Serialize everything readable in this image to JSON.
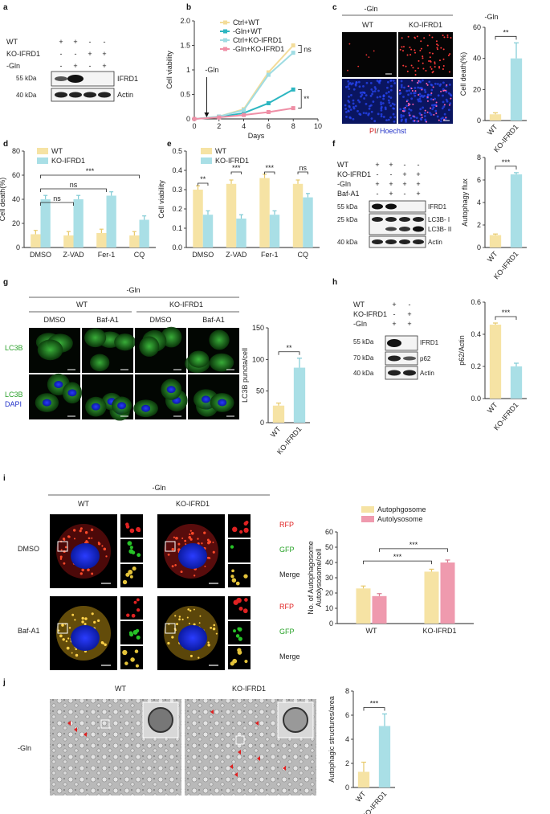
{
  "panels": {
    "a": {
      "letter": "a",
      "rows": [
        {
          "label": "WT",
          "marks": [
            "+",
            "+",
            "-",
            "-"
          ]
        },
        {
          "label": "KO-IFRD1",
          "marks": [
            "-",
            "-",
            "+",
            "+"
          ]
        },
        {
          "label": "-Gln",
          "marks": [
            "-",
            "+",
            "-",
            "+"
          ]
        }
      ],
      "kda": [
        "55 kDa",
        "40 kDa"
      ],
      "bands": [
        "IFRD1",
        "Actin"
      ]
    },
    "b": {
      "letter": "b",
      "annot_gln": "-Gln",
      "annot_ns": "ns",
      "annot_sig": "**",
      "colors": [
        "#f3dc9a",
        "#2cb6c1",
        "#9fdce3",
        "#ef8fa6"
      ]
    },
    "c": {
      "letter": "c",
      "title": "-Gln",
      "col_labels": [
        "WT",
        "KO-IFRD1"
      ],
      "stain_pi": "PI",
      "stain_sep": "/",
      "stain_hoechst": "Hoechst",
      "bar_title": "-Gln",
      "sig": "**"
    },
    "d": {
      "letter": "d",
      "sig": [
        "***",
        "ns",
        "ns"
      ]
    },
    "e": {
      "letter": "e",
      "sig": [
        "**",
        "***",
        "***",
        "ns"
      ]
    },
    "f": {
      "letter": "f",
      "rows": [
        {
          "label": "WT",
          "marks": [
            "+",
            "+",
            "-",
            "-"
          ]
        },
        {
          "label": "KO-IFRD1",
          "marks": [
            "-",
            "-",
            "+",
            "+"
          ]
        },
        {
          "label": "-Gln",
          "marks": [
            "+",
            "+",
            "+",
            "+"
          ]
        },
        {
          "label": "Baf-A1",
          "marks": [
            "-",
            "+",
            "-",
            "+"
          ]
        }
      ],
      "kda": [
        "55 kDa",
        "25 kDa",
        "40 kDa"
      ],
      "bands": [
        "IFRD1",
        "LC3B- I",
        "LC3B- II",
        "Actin"
      ],
      "sig": "***"
    },
    "g": {
      "letter": "g",
      "title": "-Gln",
      "groups": [
        "WT",
        "KO-IFRD1"
      ],
      "conds": [
        "DMSO",
        "Baf-A1",
        "DMSO",
        "Baf-A1"
      ],
      "row1": "LC3B",
      "row2a": "LC3B",
      "row2b": "DAPI",
      "sig": "**"
    },
    "h": {
      "letter": "h",
      "rows": [
        {
          "label": "WT",
          "marks": [
            "+",
            "-"
          ]
        },
        {
          "label": "KO-IFRD1",
          "marks": [
            "-",
            "+"
          ]
        },
        {
          "label": "-Gln",
          "marks": [
            "+",
            "+"
          ]
        }
      ],
      "kda": [
        "55 kDa",
        "70 kDa",
        "40 kDa"
      ],
      "bands": [
        "IFRD1",
        "p62",
        "Actin"
      ],
      "sig": "***"
    },
    "i": {
      "letter": "i",
      "title": "-Gln",
      "groups": [
        "WT",
        "KO-IFRD1"
      ],
      "rows": [
        "DMSO",
        "Baf-A1"
      ],
      "channels": [
        "RFP",
        "GFP",
        "Merge"
      ],
      "sig": [
        "***",
        "***"
      ]
    },
    "j": {
      "letter": "j",
      "groups": [
        "WT",
        "KO-IFRD1"
      ],
      "row": "-Gln",
      "sig": "***"
    }
  },
  "chart_data": [
    {
      "panel": "b",
      "type": "line",
      "x": [
        0,
        2,
        4,
        6,
        8
      ],
      "xlabel": "Days",
      "ylabel": "Cell viability",
      "xlim": [
        0,
        10
      ],
      "ylim": [
        0,
        2.0
      ],
      "xticks": [
        "0",
        "2",
        "4",
        "6",
        "8",
        "10"
      ],
      "yticks": [
        "0",
        "0.5",
        "1",
        "1.5",
        "2.0"
      ],
      "series": [
        {
          "name": "Ctrl+WT",
          "values": [
            0,
            0.05,
            0.2,
            0.95,
            1.5
          ]
        },
        {
          "name": "-Gln+WT",
          "values": [
            0,
            0.04,
            0.12,
            0.32,
            0.6
          ]
        },
        {
          "name": "Ctrl+KO-IFRD1",
          "values": [
            0,
            0.05,
            0.18,
            0.9,
            1.35
          ]
        },
        {
          "name": "-Gln+KO-IFRD1",
          "values": [
            0,
            0.03,
            0.08,
            0.14,
            0.22
          ]
        }
      ]
    },
    {
      "panel": "c",
      "type": "bar",
      "categories": [
        "WT",
        "KO-IFRD1"
      ],
      "values": [
        4,
        40
      ],
      "errors": [
        1,
        10
      ],
      "ylabel": "Cell death(%)",
      "ylim": [
        0,
        60
      ],
      "yticks": [
        "0",
        "20",
        "40",
        "60"
      ]
    },
    {
      "panel": "d",
      "type": "bar",
      "categories": [
        "DMSO",
        "Z-VAD",
        "Fer-1",
        "CQ"
      ],
      "series": [
        {
          "name": "WT",
          "values": [
            11,
            10,
            12,
            10
          ]
        },
        {
          "name": "KO-IFRD1",
          "values": [
            40,
            40,
            43,
            23
          ]
        }
      ],
      "ylabel": "Cell death(%)",
      "ylim": [
        0,
        80
      ],
      "yticks": [
        "0",
        "20",
        "40",
        "60",
        "80"
      ]
    },
    {
      "panel": "e",
      "type": "bar",
      "categories": [
        "DMSO",
        "Z-VAD",
        "Fer-1",
        "CQ"
      ],
      "series": [
        {
          "name": "WT",
          "values": [
            0.3,
            0.33,
            0.36,
            0.33
          ]
        },
        {
          "name": "KO-IFRD1",
          "values": [
            0.17,
            0.15,
            0.17,
            0.26
          ]
        }
      ],
      "ylabel": "Cell viability",
      "ylim": [
        0,
        0.5
      ],
      "yticks": [
        "0.0",
        "0.1",
        "0.2",
        "0.3",
        "0.4",
        "0.5"
      ]
    },
    {
      "panel": "f",
      "type": "bar",
      "categories": [
        "WT",
        "KO-IFRD1"
      ],
      "values": [
        1.1,
        6.5
      ],
      "errors": [
        0.1,
        0.15
      ],
      "ylabel": "Autophagy flux",
      "ylim": [
        0,
        8
      ],
      "yticks": [
        "0",
        "2",
        "4",
        "6",
        "8"
      ]
    },
    {
      "panel": "g",
      "type": "bar",
      "categories": [
        "WT",
        "KO-IFRD1"
      ],
      "values": [
        27,
        87
      ],
      "errors": [
        4,
        15
      ],
      "ylabel": "LC3B puncta/cell",
      "ylim": [
        0,
        150
      ],
      "yticks": [
        "0",
        "50",
        "100",
        "150"
      ]
    },
    {
      "panel": "h",
      "type": "bar",
      "categories": [
        "WT",
        "KO-IFRD1"
      ],
      "values": [
        0.46,
        0.2
      ],
      "errors": [
        0.01,
        0.02
      ],
      "ylabel": "p62/Actin",
      "ylim": [
        0,
        0.6
      ],
      "yticks": [
        "0.0",
        "0.2",
        "0.4",
        "0.6"
      ]
    },
    {
      "panel": "i",
      "type": "bar",
      "categories": [
        "WT",
        "KO-IFRD1"
      ],
      "series": [
        {
          "name": "Autophgosome",
          "values": [
            23,
            34
          ]
        },
        {
          "name": "Autolysosome",
          "values": [
            18,
            40
          ]
        }
      ],
      "ylabel": "No. of Autophagosome Autolysosome/cell",
      "ylim": [
        0,
        60
      ],
      "yticks": [
        "0",
        "10",
        "20",
        "30",
        "40",
        "50",
        "60"
      ]
    },
    {
      "panel": "j",
      "type": "bar",
      "categories": [
        "WT",
        "KO-IFRD1"
      ],
      "values": [
        1.3,
        5.1
      ],
      "errors": [
        0.8,
        1.0
      ],
      "ylabel": "Autophagic structures/area",
      "ylim": [
        0,
        8
      ],
      "yticks": [
        "0",
        "2",
        "4",
        "6",
        "8"
      ]
    }
  ]
}
